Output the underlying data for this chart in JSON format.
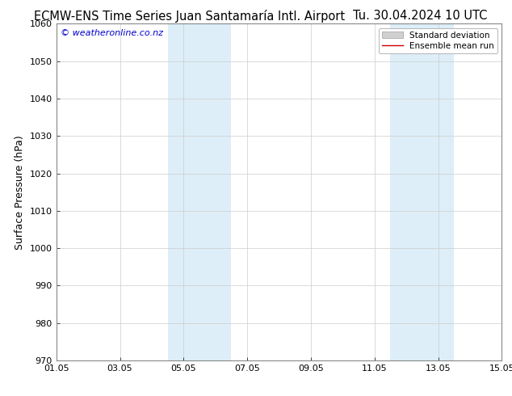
{
  "title_left": "ECMW-ENS Time Series Juan Santamaría Intl. Airport",
  "title_right": "Tu. 30.04.2024 10 UTC",
  "ylabel": "Surface Pressure (hPa)",
  "ylim": [
    970,
    1060
  ],
  "yticks": [
    970,
    980,
    990,
    1000,
    1010,
    1020,
    1030,
    1040,
    1050,
    1060
  ],
  "xtick_labels": [
    "01.05",
    "03.05",
    "05.05",
    "07.05",
    "09.05",
    "11.05",
    "13.05",
    "15.05"
  ],
  "xtick_positions": [
    0,
    2,
    4,
    6,
    8,
    10,
    12,
    14
  ],
  "x_min": 0,
  "x_max": 14,
  "shaded_regions": [
    {
      "x_start": 3.5,
      "x_end": 5.5,
      "color": "#ddeef8"
    },
    {
      "x_start": 10.5,
      "x_end": 12.5,
      "color": "#ddeef8"
    }
  ],
  "show_ensemble_line": false,
  "ensemble_mean_color": "#cc0000",
  "std_dev_fill_color": "#d0d0d0",
  "std_dev_edge_color": "#aaaaaa",
  "watermark_text": "© weatheronline.co.nz",
  "watermark_color": "#0000cc",
  "legend_std_label": "Standard deviation",
  "legend_mean_label": "Ensemble mean run",
  "background_color": "#ffffff",
  "grid_color": "#cccccc",
  "title_fontsize": 10.5,
  "tick_fontsize": 8,
  "ylabel_fontsize": 9,
  "watermark_fontsize": 8,
  "legend_fontsize": 7.5
}
